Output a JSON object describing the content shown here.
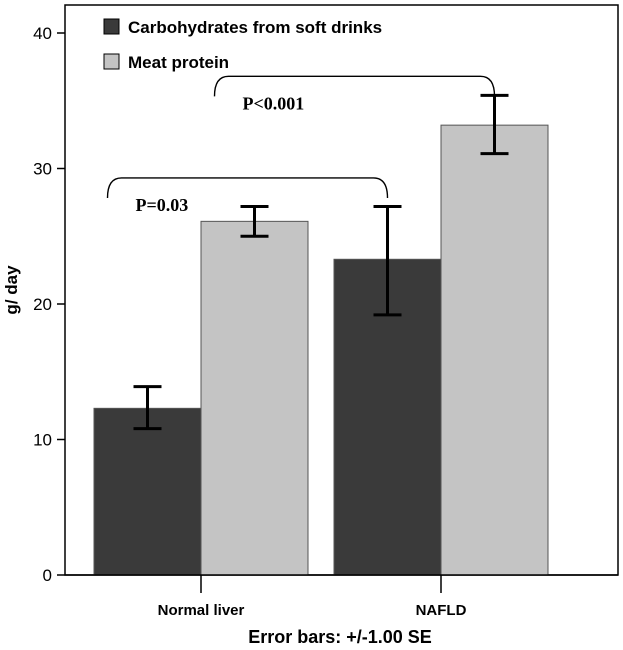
{
  "chart_data": {
    "type": "bar",
    "title": "",
    "xlabel": "",
    "ylabel": "g/ day",
    "ylim": [
      0,
      40
    ],
    "yticks": [
      0,
      10,
      20,
      30,
      40
    ],
    "categories": [
      "Normal liver",
      "NAFLD"
    ],
    "series": [
      {
        "name": "Carbohydrates from soft drinks",
        "color": "#3a3a3a",
        "values": [
          12.3,
          23.3
        ],
        "error_low": [
          10.8,
          19.2
        ],
        "error_high": [
          13.9,
          27.2
        ]
      },
      {
        "name": "Meat protein",
        "color": "#c4c4c4",
        "values": [
          26.1,
          33.2
        ],
        "error_low": [
          25.0,
          31.1
        ],
        "error_high": [
          27.2,
          35.4
        ]
      }
    ],
    "annotations": [
      {
        "text": "P=0.03",
        "category": "Normal liver",
        "series": "Carbohydrates from soft drinks",
        "to_category": "NAFLD",
        "to_series": "Carbohydrates from soft drinks",
        "level": 29.3
      },
      {
        "text": "P<0.001",
        "category": "Normal liver",
        "series": "Meat protein",
        "to_category": "NAFLD",
        "to_series": "Meat protein",
        "level": 36.8
      }
    ],
    "note": "Error bars: +/-1.00 SE",
    "grid": false,
    "legend_position": "top-left"
  }
}
